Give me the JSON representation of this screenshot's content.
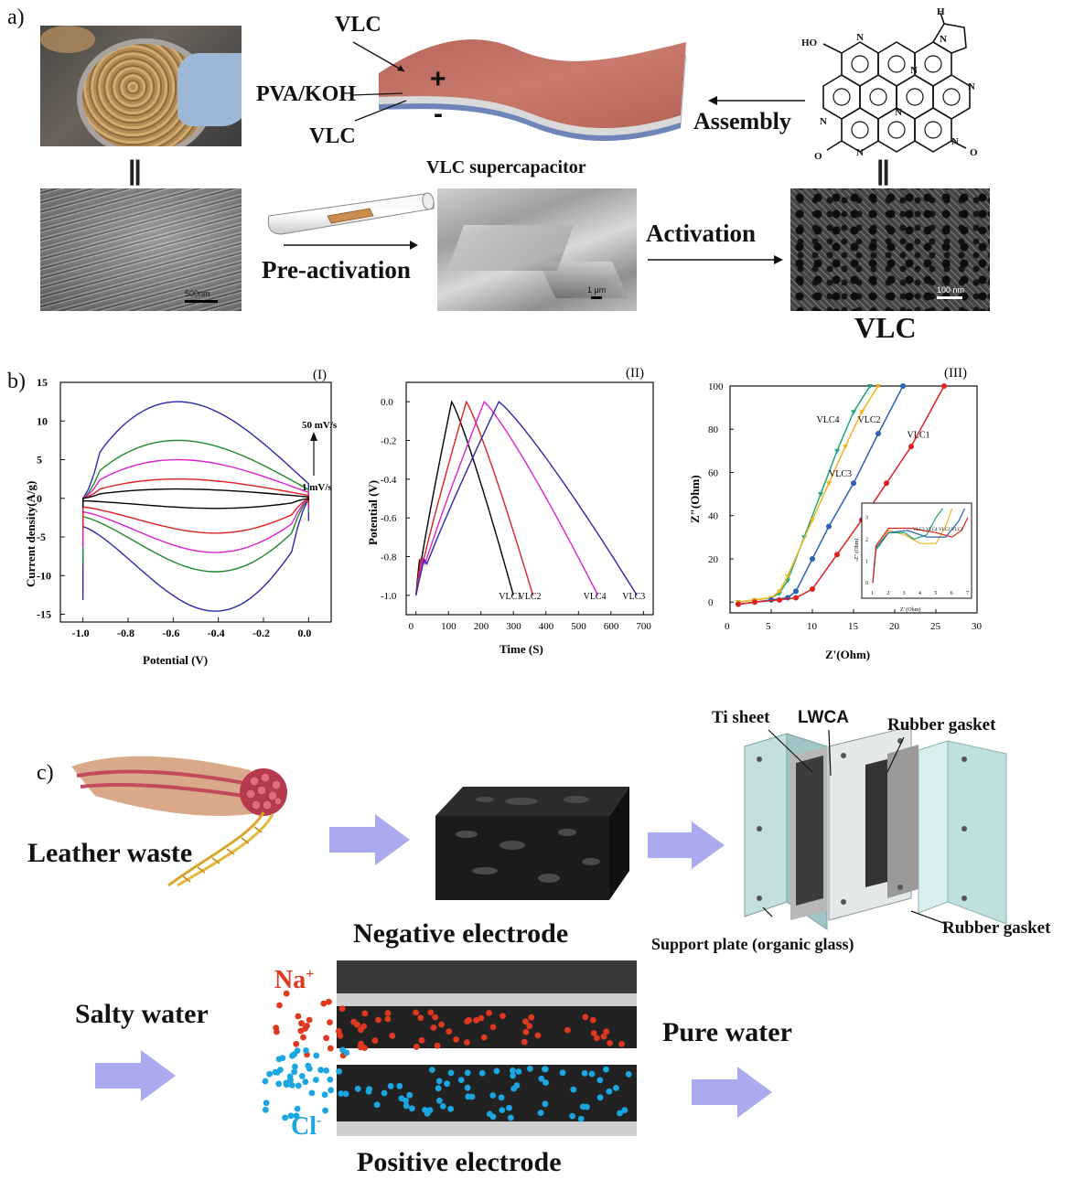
{
  "panel_a": {
    "letter": "a)",
    "layer_top": "VLC",
    "layer_mid": "PVA/KOH",
    "layer_bot": "VLC",
    "plus_sign": "+",
    "minus_sign": "-",
    "device_caption": "VLC supercapacitor",
    "assembly_label": "Assembly",
    "preactivation_label": "Pre-activation",
    "activation_label": "Activation",
    "product_label": "VLC",
    "scale_1": "500nm",
    "scale_2": "1 μm",
    "scale_3": "100 nm",
    "equals_1": "||",
    "equals_2": "||",
    "molecule": {
      "h": "H",
      "ho": "HO",
      "n": "N",
      "o": "O",
      "o_minus": "O"
    }
  },
  "panel_b": {
    "letter": "b)",
    "cv": {
      "tag": "(I)",
      "xlabel": "Potential (V)",
      "ylabel": "Current density(A/g)",
      "annotation_high": "50 mV/s",
      "annotation_low": "1 mV/s",
      "xticks": [
        "-1.0",
        "-0.8",
        "-0.6",
        "-0.4",
        "-0.2",
        "0.0"
      ],
      "yticks": [
        "-15",
        "-10",
        "-5",
        "0",
        "5",
        "10",
        "15"
      ]
    },
    "gcd": {
      "tag": "(II)",
      "xlabel": "Time (S)",
      "ylabel": "Potential (V)",
      "xticks": [
        "0",
        "100",
        "200",
        "300",
        "400",
        "500",
        "600",
        "700"
      ],
      "yticks": [
        "0.0",
        "-0.2",
        "-0.4",
        "-0.6",
        "-0.8",
        "-1.0"
      ],
      "labels": [
        "VLC1",
        "VLC2",
        "VLC4",
        "VLC3"
      ]
    },
    "eis": {
      "tag": "(III)",
      "xlabel": "Z'(Ohm)",
      "ylabel": "Z\"(Ohm)",
      "xticks": [
        "0",
        "5",
        "10",
        "15",
        "20",
        "25",
        "30"
      ],
      "yticks": [
        "0",
        "20",
        "40",
        "60",
        "80",
        "100"
      ],
      "labels": [
        "VLC4",
        "VLC2",
        "VLC1",
        "VLC3"
      ],
      "inset_xlabel": "Z' (Ohm)",
      "inset_ylabel": "-Z'' (Ohm)",
      "inset_labels": [
        "VLC3",
        "VLC4",
        "VLC2",
        "VLC1"
      ],
      "inset_xticks": [
        "1",
        "2",
        "3",
        "4",
        "5",
        "6",
        "7"
      ],
      "inset_yticks": [
        "0",
        "1",
        "2",
        "3"
      ]
    }
  },
  "panel_c": {
    "letter": "c)",
    "leather_label": "Leather waste",
    "ti_sheet": "Ti sheet",
    "lwca": "LWCA",
    "rubber_gasket_top": "Rubber gasket",
    "rubber_gasket_bottom": "Rubber gasket",
    "support_plate": "Support plate (organic glass)",
    "negative_electrode": "Negative electrode",
    "positive_electrode": "Positive electrode",
    "salty_water": "Salty water",
    "pure_water": "Pure water",
    "na_ion": "Na",
    "na_charge": "+",
    "cl_ion": "Cl",
    "cl_charge": "-"
  },
  "colors": {
    "ion_red": "#e0381f",
    "ion_blue": "#1aa6e0",
    "arrow_fill": "#aaaaee",
    "cv_blue": "#2a2aa8",
    "cv_green": "#1e8a2e",
    "cv_magenta": "#e020d0",
    "cv_red": "#e02020",
    "cv_black": "#000000",
    "eis_green": "#1aa57a",
    "eis_yellow": "#f2b51a",
    "eis_blue": "#2b63b0",
    "eis_red": "#e02020"
  },
  "chart_data": [
    {
      "type": "line",
      "title": "(I)",
      "xlabel": "Potential (V)",
      "ylabel": "Current density(A/g)",
      "xlim": [
        -1.1,
        0.1
      ],
      "ylim": [
        -16,
        15
      ],
      "series": [
        {
          "rate": "50 mV/s",
          "upper_peak": 12.5,
          "lower_min": -14.6
        },
        {
          "upper_peak": 7.5,
          "lower_min": -9.5
        },
        {
          "upper_peak": 5.0,
          "lower_min": -7.0
        },
        {
          "upper_peak": 2.5,
          "lower_min": -4.5
        },
        {
          "rate": "1 mV/s",
          "upper_peak": 1.2,
          "lower_min": -1.3
        }
      ]
    },
    {
      "type": "line",
      "title": "(II)",
      "xlabel": "Time (S)",
      "ylabel": "Potential (V)",
      "xlim": [
        -30,
        730
      ],
      "ylim": [
        -1.1,
        0.1
      ],
      "series": [
        {
          "name": "VLC1",
          "peak_time": 110,
          "end_time": 300
        },
        {
          "name": "VLC2",
          "peak_time": 155,
          "end_time": 360
        },
        {
          "name": "VLC4",
          "peak_time": 210,
          "end_time": 560
        },
        {
          "name": "VLC3",
          "peak_time": 255,
          "end_time": 680
        }
      ]
    },
    {
      "type": "scatter",
      "title": "(III)",
      "xlabel": "Z'(Ohm)",
      "ylabel": "Z\"(Ohm)",
      "xlim": [
        0,
        30
      ],
      "ylim": [
        -5,
        100
      ],
      "series": [
        {
          "name": "VLC4",
          "points": [
            [
              1,
              0
            ],
            [
              3,
              1
            ],
            [
              5,
              2
            ],
            [
              6,
              4
            ],
            [
              7,
              10
            ],
            [
              9,
              30
            ],
            [
              11,
              50
            ],
            [
              13,
              70
            ],
            [
              15,
              88
            ],
            [
              17,
              100
            ]
          ]
        },
        {
          "name": "VLC3",
          "points": [
            [
              1,
              0
            ],
            [
              3,
              1
            ],
            [
              5,
              2
            ],
            [
              6,
              5
            ],
            [
              7,
              12
            ],
            [
              10,
              38
            ],
            [
              12,
              55
            ],
            [
              14,
              72
            ],
            [
              16,
              88
            ],
            [
              18,
              100
            ]
          ]
        },
        {
          "name": "VLC2",
          "points": [
            [
              1,
              -1
            ],
            [
              3,
              0
            ],
            [
              5,
              1
            ],
            [
              7,
              2
            ],
            [
              8,
              5
            ],
            [
              10,
              20
            ],
            [
              12,
              35
            ],
            [
              15,
              55
            ],
            [
              18,
              78
            ],
            [
              21,
              100
            ]
          ]
        },
        {
          "name": "VLC1",
          "points": [
            [
              1,
              -1
            ],
            [
              3,
              0
            ],
            [
              6,
              1
            ],
            [
              8,
              2
            ],
            [
              10,
              6
            ],
            [
              13,
              22
            ],
            [
              16,
              38
            ],
            [
              19,
              55
            ],
            [
              22,
              72
            ],
            [
              26,
              100
            ]
          ]
        }
      ]
    }
  ]
}
